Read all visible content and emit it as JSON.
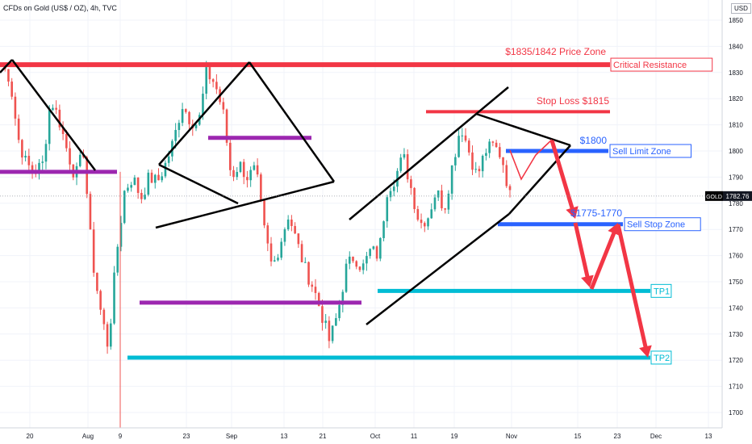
{
  "header": {
    "symbol_title": "CFDs on Gold (US$ / OZ), 4h, TVC",
    "currency": "USD"
  },
  "colors": {
    "up": "#26a69a",
    "down": "#ef5350",
    "resistance": "#f23645",
    "purple": "#9c27b0",
    "blue": "#2962ff",
    "teal": "#00bcd4",
    "line": "#000000",
    "arrow": "#f23645"
  },
  "chart_data": {
    "type": "candlestick",
    "symbol": "GOLD",
    "timeframe": "4h",
    "y_axis": {
      "min": 1695,
      "max": 1860,
      "ticks": [
        1850,
        1840,
        1830,
        1820,
        1810,
        1800,
        1790,
        1780,
        1770,
        1760,
        1750,
        1740,
        1730,
        1720,
        1710,
        1700
      ]
    },
    "x_axis": {
      "tick_labels": [
        "20",
        "Aug",
        "9",
        "23",
        "Sep",
        "13",
        "21",
        "Oct",
        "11",
        "19",
        "Nov",
        "15",
        "23",
        "Dec",
        "13"
      ]
    },
    "last_price": {
      "label": "GOLD",
      "value": 1782.76
    },
    "price_path": [
      [
        1815,
        1833
      ],
      [
        1826,
        1828
      ],
      [
        1800,
        1805
      ],
      [
        1810,
        1795
      ],
      [
        1790,
        1792
      ],
      [
        1800,
        1795
      ],
      [
        1830,
        1820
      ],
      [
        1822,
        1812
      ],
      [
        1815,
        1800
      ],
      [
        1784,
        1790
      ],
      [
        1800,
        1800
      ],
      [
        1770,
        1760
      ],
      [
        1735,
        1740
      ],
      [
        1720,
        1725
      ],
      [
        1745,
        1760
      ],
      [
        1780,
        1785
      ],
      [
        1792,
        1790
      ],
      [
        1790,
        1782
      ],
      [
        1795,
        1790
      ],
      [
        1783,
        1788
      ],
      [
        1806,
        1795
      ],
      [
        1800,
        1804
      ],
      [
        1812,
        1818
      ],
      [
        1820,
        1812
      ],
      [
        1815,
        1810
      ],
      [
        1820,
        1830
      ],
      [
        1834,
        1826
      ],
      [
        1828,
        1815
      ],
      [
        1800,
        1790
      ],
      [
        1792,
        1795
      ],
      [
        1800,
        1790
      ],
      [
        1792,
        1793
      ],
      [
        1780,
        1770
      ],
      [
        1760,
        1755
      ],
      [
        1745,
        1765
      ],
      [
        1770,
        1776
      ],
      [
        1770,
        1765
      ],
      [
        1758,
        1755
      ],
      [
        1750,
        1748
      ],
      [
        1745,
        1738
      ],
      [
        1732,
        1727
      ],
      [
        1722,
        1738
      ],
      [
        1742,
        1755
      ],
      [
        1758,
        1760
      ],
      [
        1765,
        1755
      ],
      [
        1762,
        1762
      ],
      [
        1768,
        1760
      ],
      [
        1775,
        1785
      ],
      [
        1782,
        1790
      ],
      [
        1800,
        1798
      ],
      [
        1795,
        1785
      ],
      [
        1780,
        1772
      ],
      [
        1765,
        1775
      ],
      [
        1780,
        1785
      ],
      [
        1785,
        1778
      ],
      [
        1800,
        1795
      ],
      [
        1805,
        1810
      ],
      [
        1812,
        1800
      ],
      [
        1795,
        1790
      ],
      [
        1796,
        1800
      ],
      [
        1805,
        1802
      ],
      [
        1808,
        1798
      ],
      [
        1800,
        1782.76
      ]
    ],
    "horizontal_levels": [
      {
        "name": "critical-resistance",
        "value": 1833,
        "color": "resistance",
        "label": "Critical Resistance",
        "x_start": 0,
        "x_end": 756
      },
      {
        "name": "stop-loss",
        "value": 1815,
        "color": "resistance",
        "label": "",
        "x_start": 528,
        "x_end": 756
      },
      {
        "name": "support-purple-1",
        "value": 1792,
        "color": "purple",
        "label": "",
        "x_start": 0,
        "x_end": 145
      },
      {
        "name": "resistance-purple-2",
        "value": 1805,
        "color": "purple",
        "label": "",
        "x_start": 258,
        "x_end": 386
      },
      {
        "name": "support-purple-3",
        "value": 1742,
        "color": "purple",
        "label": "",
        "x_start": 173,
        "x_end": 448
      },
      {
        "name": "sell-limit-zone",
        "value": 1800,
        "color": "blue",
        "label": "Sell Limit Zone",
        "x_start": 627,
        "x_end": 754
      },
      {
        "name": "sell-stop-zone",
        "value": 1772,
        "color": "blue",
        "label": "Sell Stop Zone",
        "x_start": 617,
        "x_end": 772
      },
      {
        "name": "tp1",
        "value": 1746.5,
        "color": "teal",
        "label": "TP1",
        "x_start": 468,
        "x_end": 806
      },
      {
        "name": "tp2",
        "value": 1721,
        "color": "teal",
        "label": "TP2",
        "x_start": 158,
        "x_end": 806
      }
    ],
    "annotations": {
      "price_zone": "$1835/1842 Price Zone",
      "stop_loss": "Stop Loss $1815",
      "sell_limit_price": "$1800",
      "sell_stop_range": "$1775-1770"
    }
  }
}
